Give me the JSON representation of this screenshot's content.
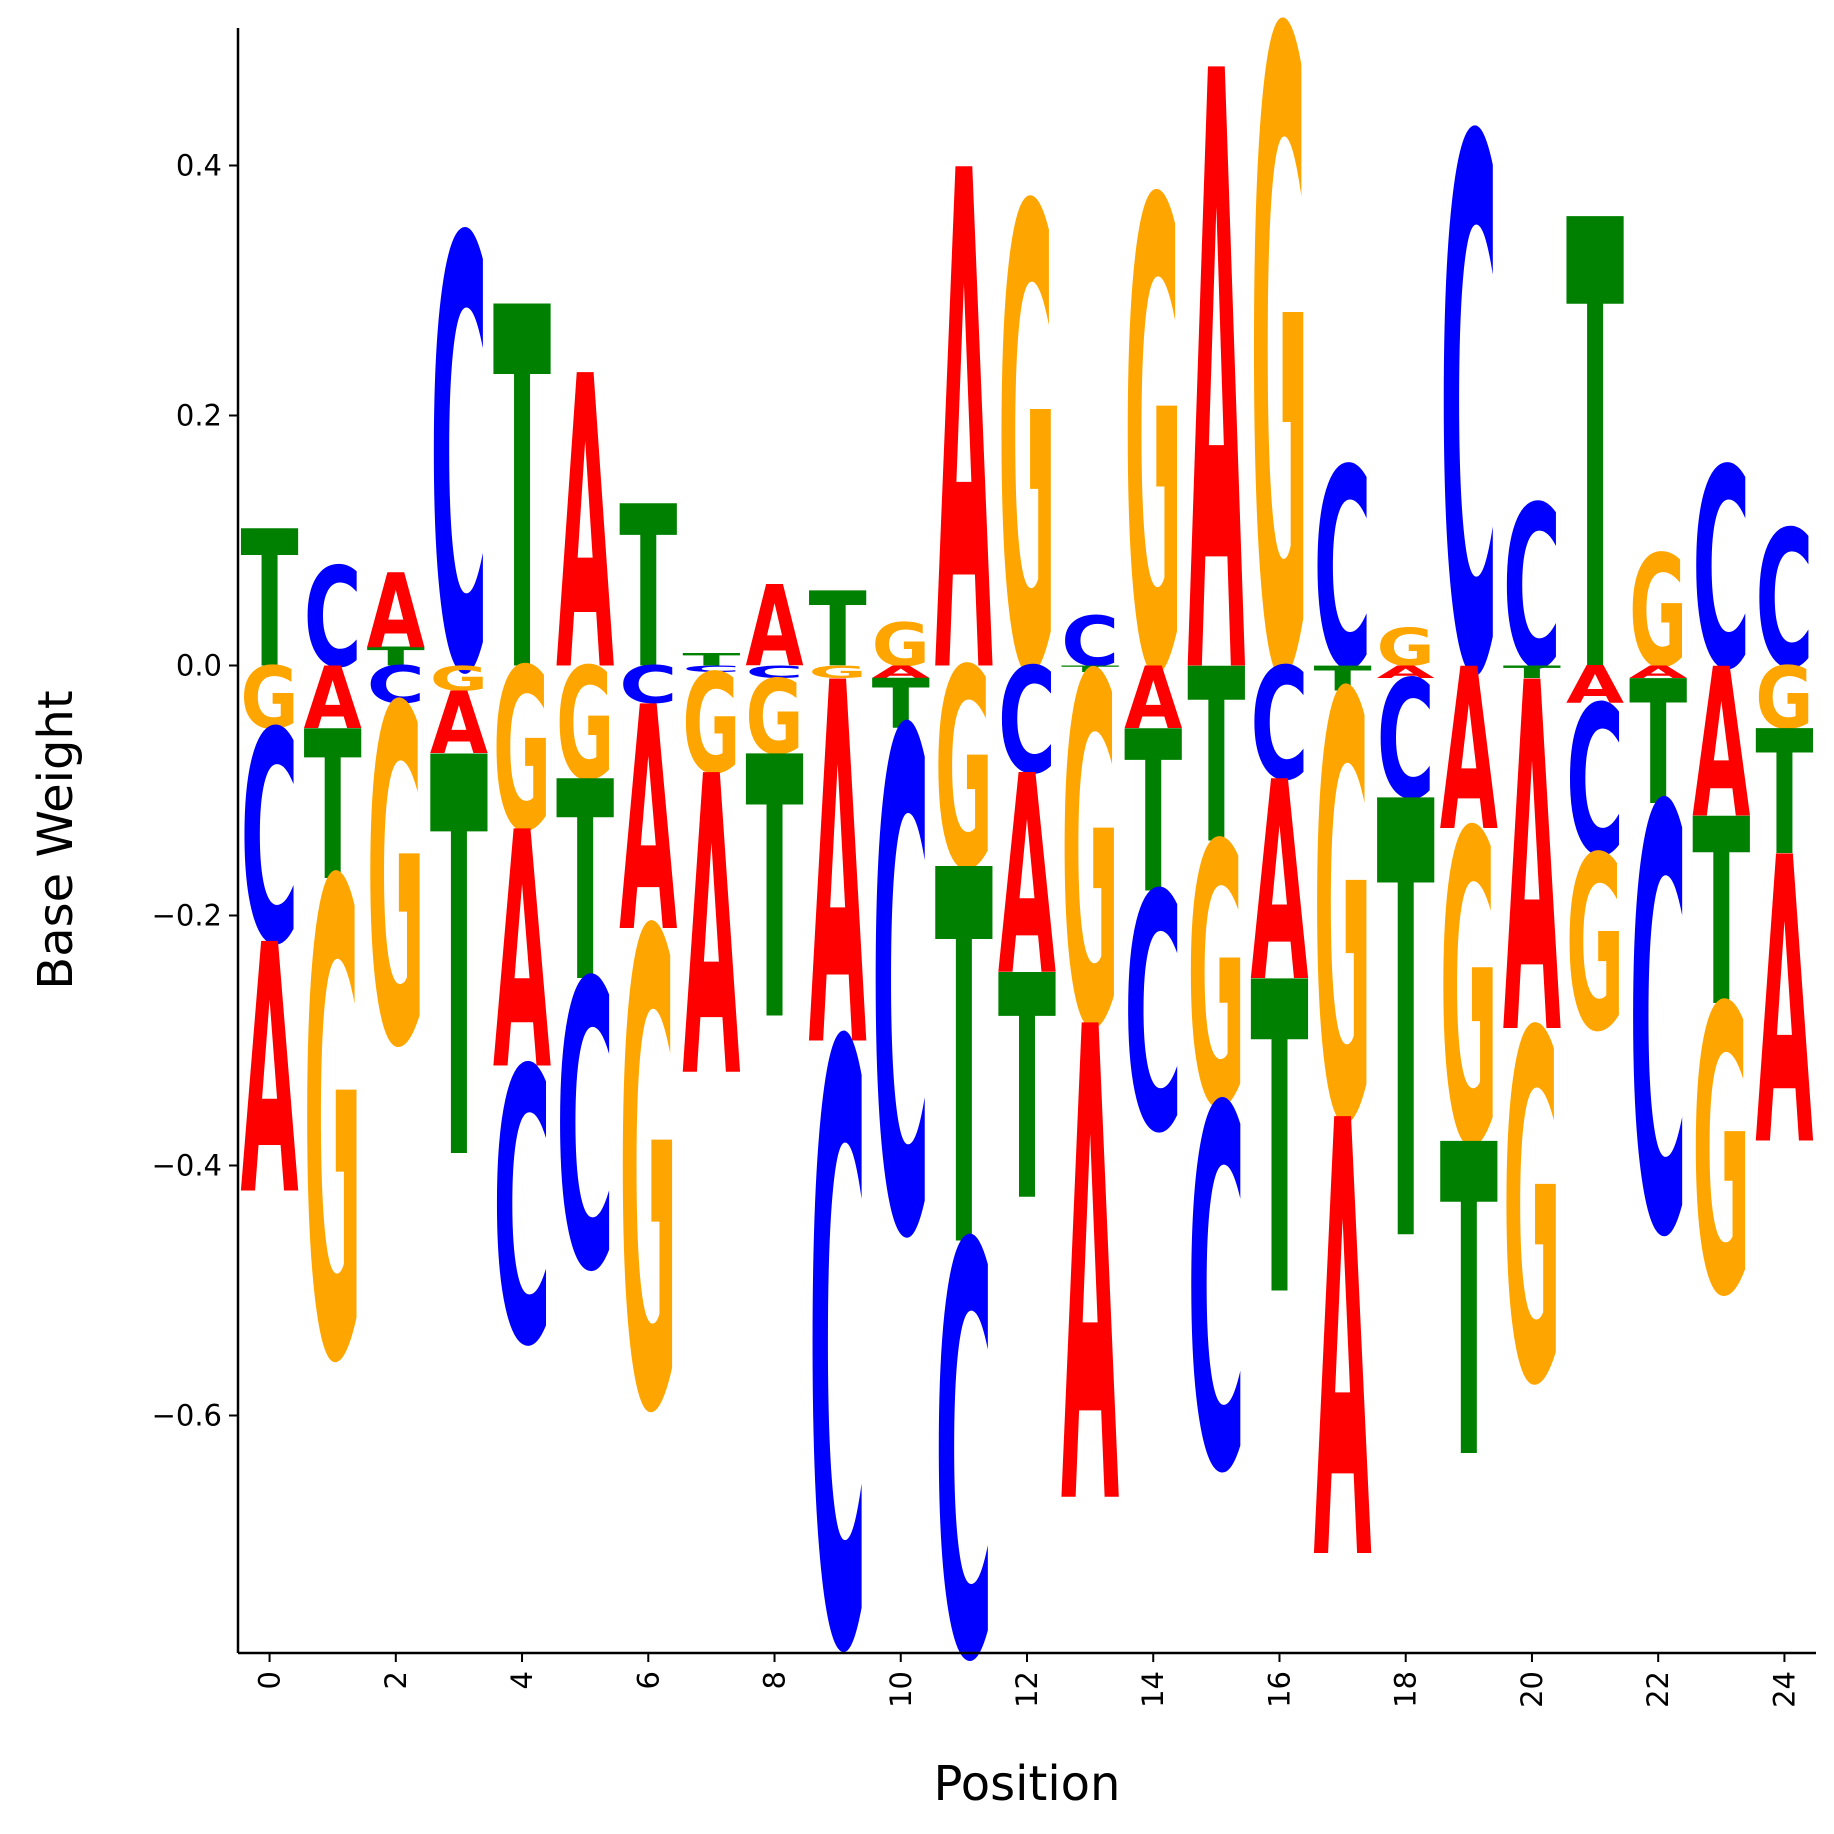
{
  "chart_data": {
    "type": "sequence-logo",
    "title": "",
    "xlabel": "Position",
    "ylabel": "Base Weight",
    "xlim": [
      -0.5,
      24.5
    ],
    "ylim": [
      -0.79,
      0.51
    ],
    "xticks": [
      0,
      2,
      4,
      6,
      8,
      10,
      12,
      14,
      16,
      18,
      20,
      22,
      24
    ],
    "yticks": [
      -0.6,
      -0.4,
      -0.2,
      0.0,
      0.2,
      0.4
    ],
    "ytick_labels": [
      "−0.6",
      "−0.4",
      "−0.2",
      "0.0",
      "0.2",
      "0.4"
    ],
    "colors": {
      "A": "#ff0000",
      "C": "#0000ff",
      "G": "#ffa500",
      "T": "#008000"
    },
    "positions": [
      {
        "pos": 0,
        "A": -0.2,
        "C": -0.17,
        "G": -0.05,
        "T": 0.11
      },
      {
        "pos": 1,
        "A": -0.05,
        "C": 0.08,
        "G": -0.38,
        "T": -0.12
      },
      {
        "pos": 2,
        "A": 0.06,
        "C": -0.03,
        "G": -0.27,
        "T": 0.015
      },
      {
        "pos": 3,
        "A": -0.05,
        "C": 0.345,
        "G": -0.02,
        "T": -0.32
      },
      {
        "pos": 4,
        "A": -0.19,
        "C": -0.22,
        "G": -0.13,
        "T": 0.29
      },
      {
        "pos": 5,
        "A": 0.235,
        "C": -0.23,
        "G": -0.09,
        "T": -0.16
      },
      {
        "pos": 6,
        "A": -0.18,
        "C": -0.03,
        "G": -0.38,
        "T": 0.13
      },
      {
        "pos": 7,
        "A": -0.24,
        "C": -0.005,
        "G": -0.08,
        "T": 0.01
      },
      {
        "pos": 8,
        "A": 0.065,
        "C": -0.01,
        "G": -0.06,
        "T": -0.21
      },
      {
        "pos": 9,
        "A": -0.29,
        "C": -0.48,
        "G": -0.01,
        "T": 0.06
      },
      {
        "pos": 10,
        "A": -0.01,
        "C": -0.4,
        "G": 0.035,
        "T": -0.04
      },
      {
        "pos": 11,
        "A": 0.4,
        "C": -0.33,
        "G": -0.16,
        "T": -0.3
      },
      {
        "pos": 12,
        "A": -0.16,
        "C": -0.085,
        "G": 0.37,
        "T": -0.18
      },
      {
        "pos": 13,
        "A": -0.38,
        "C": 0.04,
        "G": -0.28,
        "T": -0.005
      },
      {
        "pos": 14,
        "A": -0.05,
        "C": -0.19,
        "G": 0.375,
        "T": -0.13
      },
      {
        "pos": 15,
        "A": 0.48,
        "C": -0.29,
        "G": -0.21,
        "T": -0.14
      },
      {
        "pos": 16,
        "A": -0.16,
        "C": -0.09,
        "G": 0.51,
        "T": -0.25
      },
      {
        "pos": 17,
        "A": -0.35,
        "C": 0.16,
        "G": -0.34,
        "T": -0.02
      },
      {
        "pos": 18,
        "A": -0.01,
        "C": -0.095,
        "G": 0.03,
        "T": -0.35
      },
      {
        "pos": 19,
        "A": -0.13,
        "C": 0.425,
        "G": -0.25,
        "T": -0.25
      },
      {
        "pos": 20,
        "A": -0.28,
        "C": 0.13,
        "G": -0.28,
        "T": -0.01
      },
      {
        "pos": 21,
        "A": -0.03,
        "C": -0.12,
        "G": -0.14,
        "T": 0.36
      },
      {
        "pos": 22,
        "A": -0.01,
        "C": -0.34,
        "G": 0.09,
        "T": -0.1
      },
      {
        "pos": 23,
        "A": -0.12,
        "C": 0.16,
        "G": -0.23,
        "T": -0.15
      },
      {
        "pos": 24,
        "A": -0.23,
        "C": 0.11,
        "G": -0.05,
        "T": -0.1
      }
    ]
  }
}
